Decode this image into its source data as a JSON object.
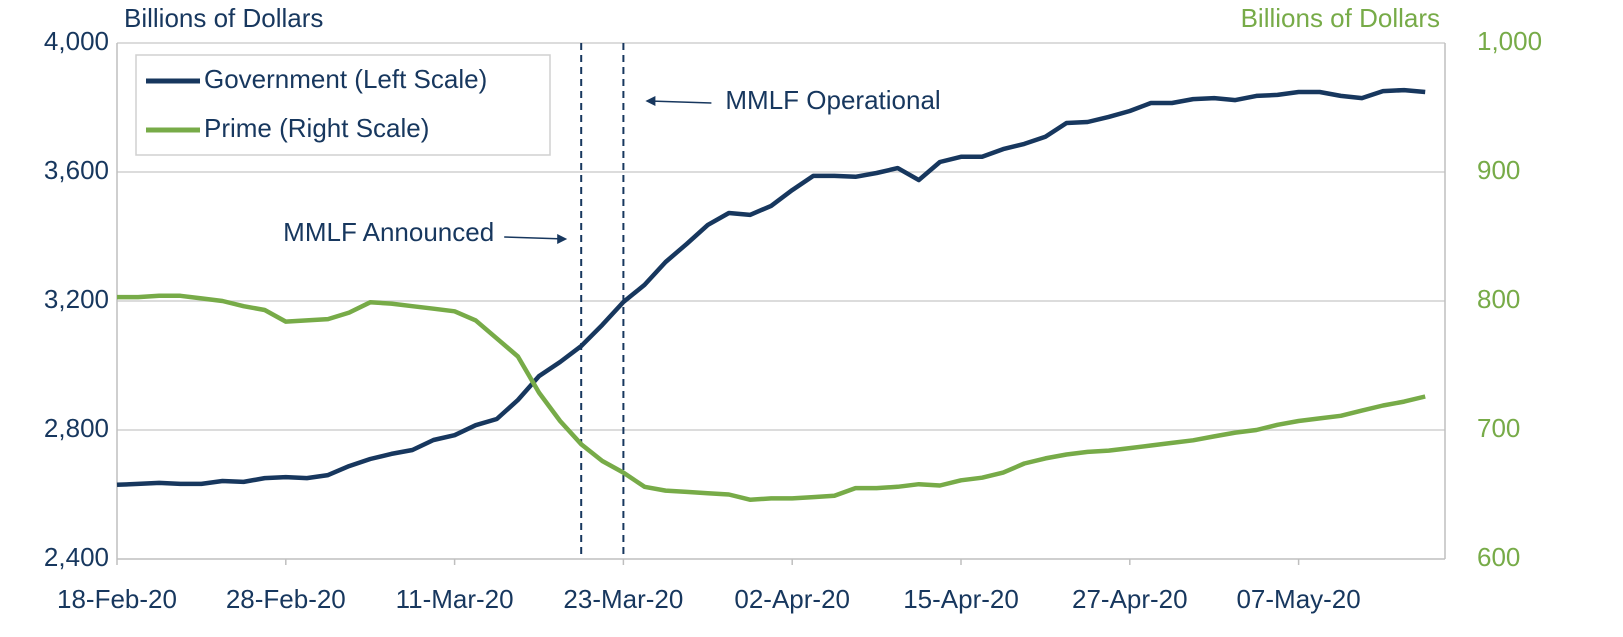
{
  "chart_data": {
    "type": "line",
    "y_label": "Billions of Dollars",
    "y2_label": "Billions of Dollars",
    "categories": [
      "18-Feb-20",
      null,
      null,
      null,
      null,
      null,
      null,
      null,
      "28-Feb-20",
      null,
      null,
      null,
      null,
      null,
      null,
      null,
      "11-Mar-20",
      null,
      null,
      null,
      null,
      null,
      null,
      null,
      "23-Mar-20",
      null,
      null,
      null,
      null,
      null,
      null,
      null,
      "02-Apr-20",
      null,
      null,
      null,
      null,
      null,
      null,
      null,
      "15-Apr-20",
      null,
      null,
      null,
      null,
      null,
      null,
      null,
      "27-Apr-20",
      null,
      null,
      null,
      null,
      null,
      null,
      null,
      "07-May-20",
      null,
      null,
      null,
      null,
      null,
      null
    ],
    "series": [
      {
        "name": "Government (Left Scale)",
        "color": "#17375e",
        "axis": "y",
        "values": [
          2630,
          2633,
          2636,
          2633,
          2633,
          2642,
          2639,
          2651,
          2654,
          2651,
          2660,
          2688,
          2710,
          2726,
          2738,
          2769,
          2784,
          2815,
          2834,
          2893,
          2967,
          3011,
          3060,
          3126,
          3197,
          3250,
          3321,
          3377,
          3436,
          3473,
          3467,
          3495,
          3544,
          3588,
          3588,
          3585,
          3597,
          3612,
          3575,
          3631,
          3647,
          3647,
          3671,
          3687,
          3709,
          3752,
          3755,
          3771,
          3789,
          3814,
          3814,
          3826,
          3829,
          3823,
          3836,
          3839,
          3848,
          3848,
          3836,
          3829,
          3851,
          3854,
          3848
        ]
      },
      {
        "name": "Prime (Right Scale)",
        "color": "#77ab48",
        "axis": "y2",
        "values": [
          803,
          803,
          804,
          804,
          802,
          800,
          796,
          793,
          784,
          785,
          786,
          791,
          799,
          798,
          796,
          794,
          792,
          785,
          771,
          757,
          729,
          707,
          689,
          676,
          667,
          656,
          653,
          652,
          651,
          650,
          646,
          647,
          647,
          648,
          649,
          655,
          655,
          656,
          658,
          657,
          661,
          663,
          667,
          674,
          678,
          681,
          683,
          684,
          686,
          688,
          690,
          692,
          695,
          698,
          700,
          704,
          707,
          709,
          711,
          715,
          719,
          722,
          726
        ]
      }
    ],
    "ylim": [
      2400,
      4000
    ],
    "yticks": [
      {
        "value": 2400,
        "label": "2,400"
      },
      {
        "value": 2800,
        "label": "2,800"
      },
      {
        "value": 3200,
        "label": "3,200"
      },
      {
        "value": 3600,
        "label": "3,600"
      },
      {
        "value": 4000,
        "label": "4,000"
      }
    ],
    "y2lim": [
      600,
      1000
    ],
    "y2ticks": [
      600,
      700,
      800,
      900,
      {
        "value": 1000,
        "label": "1,000"
      }
    ],
    "vlines": [
      {
        "text": "MMLF Announced",
        "category": 22
      },
      {
        "text": "MMLF Operational",
        "category": 24
      }
    ],
    "grid": true,
    "legend": "upper left"
  }
}
